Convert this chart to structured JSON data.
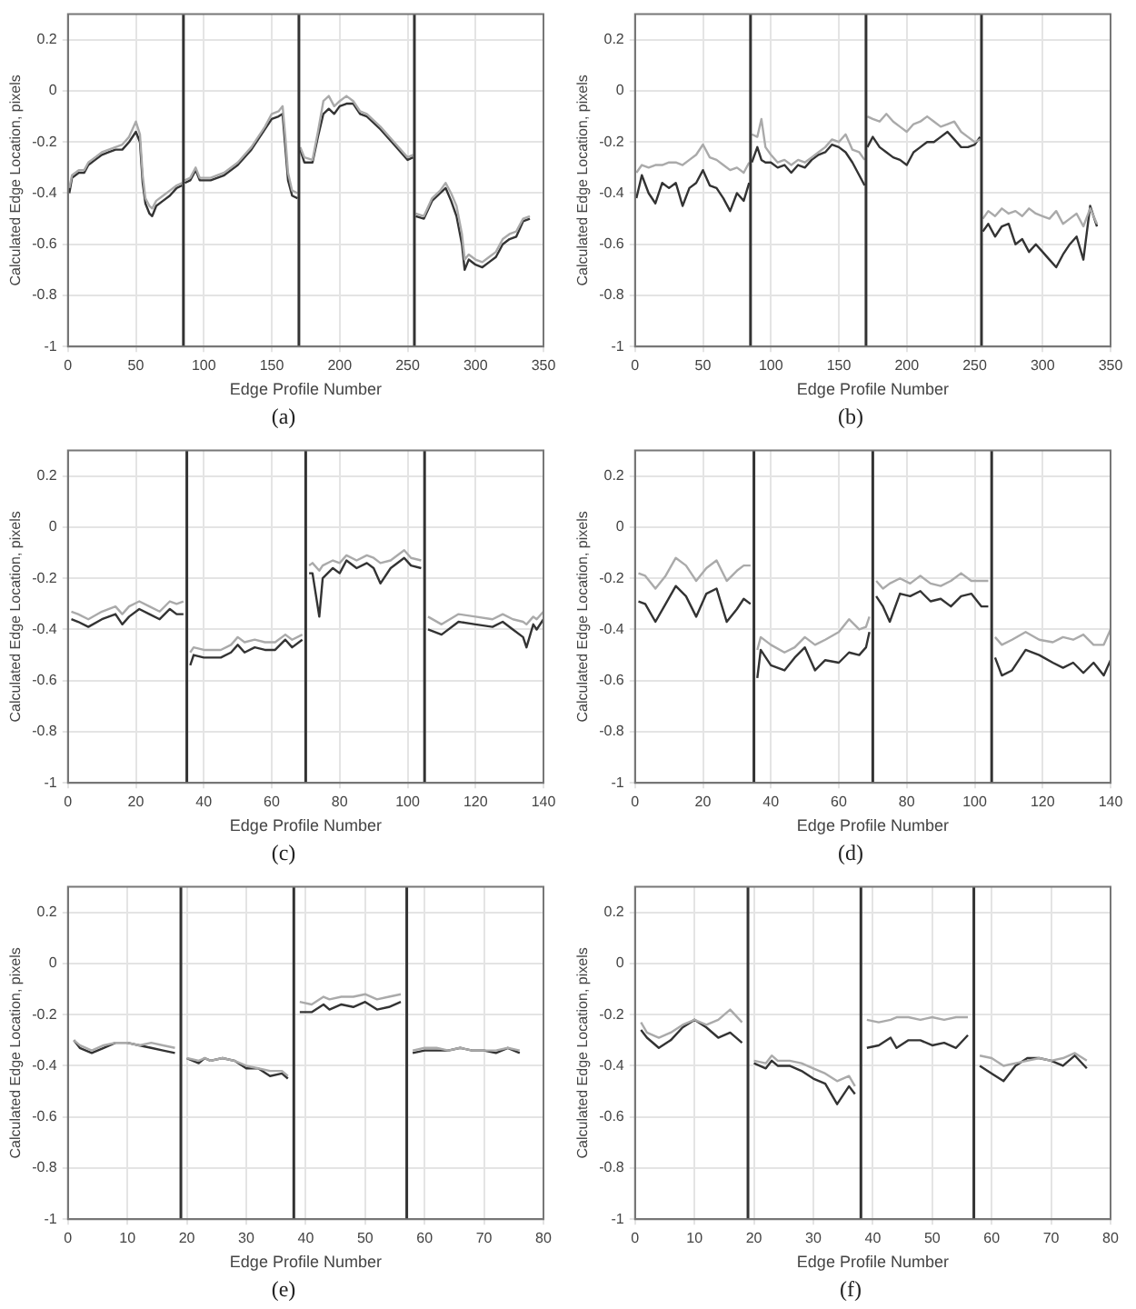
{
  "chart_data": [
    {
      "type": "line",
      "xlabel": "Edge Profile Number",
      "ylabel": "Calculated Edge Location, pixels",
      "annotations": [
        "(a)"
      ],
      "grid": true,
      "marker": "none",
      "line_style": "solid",
      "xlim": [
        0,
        350
      ],
      "xticks": [
        0,
        50,
        100,
        150,
        200,
        250,
        300,
        350
      ],
      "ylim": [
        -1,
        0.3
      ],
      "yticks": [
        -1,
        -0.8,
        -0.6,
        -0.4,
        -0.2,
        0,
        0.2
      ],
      "ref_lines": [
        {
          "axis": "x",
          "value": 85,
          "color": "#333333"
        },
        {
          "axis": "x",
          "value": 170,
          "color": "#333333"
        },
        {
          "axis": "x",
          "value": 255,
          "color": "#333333"
        }
      ],
      "x": [
        1,
        3,
        8,
        12,
        15,
        20,
        25,
        30,
        35,
        40,
        45,
        50,
        53,
        55,
        57,
        60,
        62,
        65,
        70,
        75,
        80,
        84,
        85,
        86,
        90,
        94,
        97,
        105,
        115,
        125,
        135,
        145,
        150,
        155,
        158,
        160,
        162,
        165,
        169,
        170,
        171,
        174,
        180,
        184,
        188,
        192,
        196,
        200,
        205,
        210,
        215,
        220,
        230,
        240,
        250,
        254,
        255,
        256,
        262,
        268,
        274,
        278,
        282,
        286,
        290,
        292,
        295,
        300,
        305,
        310,
        315,
        320,
        325,
        330,
        335,
        340
      ],
      "series": [
        {
          "color": "#aaaaaa",
          "values": [
            -0.38,
            -0.33,
            -0.31,
            -0.31,
            -0.28,
            -0.26,
            -0.24,
            -0.23,
            -0.22,
            -0.21,
            -0.18,
            -0.12,
            -0.17,
            -0.33,
            -0.42,
            -0.45,
            -0.46,
            -0.43,
            -0.41,
            -0.39,
            -0.37,
            -0.36,
            null,
            -0.35,
            -0.34,
            -0.3,
            -0.34,
            -0.34,
            -0.32,
            -0.28,
            -0.22,
            -0.14,
            -0.09,
            -0.08,
            -0.06,
            -0.18,
            -0.32,
            -0.39,
            -0.4,
            null,
            -0.22,
            -0.26,
            -0.27,
            -0.16,
            -0.04,
            -0.02,
            -0.06,
            -0.04,
            -0.02,
            -0.04,
            -0.08,
            -0.09,
            -0.14,
            -0.2,
            -0.26,
            -0.25,
            null,
            -0.48,
            -0.49,
            -0.42,
            -0.39,
            -0.36,
            -0.4,
            -0.45,
            -0.56,
            -0.66,
            -0.64,
            -0.66,
            -0.67,
            -0.65,
            -0.63,
            -0.58,
            -0.56,
            -0.55,
            -0.5,
            -0.49
          ]
        },
        {
          "color": "#333333",
          "values": [
            -0.4,
            -0.34,
            -0.32,
            -0.32,
            -0.29,
            -0.27,
            -0.25,
            -0.24,
            -0.23,
            -0.23,
            -0.2,
            -0.16,
            -0.2,
            -0.36,
            -0.44,
            -0.48,
            -0.49,
            -0.45,
            -0.43,
            -0.41,
            -0.38,
            -0.37,
            null,
            -0.36,
            -0.35,
            -0.31,
            -0.35,
            -0.35,
            -0.33,
            -0.29,
            -0.23,
            -0.15,
            -0.11,
            -0.1,
            -0.09,
            -0.22,
            -0.35,
            -0.41,
            -0.42,
            null,
            -0.23,
            -0.28,
            -0.28,
            -0.18,
            -0.09,
            -0.07,
            -0.09,
            -0.06,
            -0.05,
            -0.05,
            -0.09,
            -0.1,
            -0.15,
            -0.21,
            -0.27,
            -0.26,
            null,
            -0.49,
            -0.5,
            -0.43,
            -0.4,
            -0.38,
            -0.43,
            -0.49,
            -0.6,
            -0.7,
            -0.66,
            -0.68,
            -0.69,
            -0.67,
            -0.65,
            -0.6,
            -0.58,
            -0.57,
            -0.51,
            -0.5
          ]
        }
      ]
    },
    {
      "type": "line",
      "xlabel": "Edge Profile Number",
      "ylabel": "Calculated Edge Location, pixels",
      "annotations": [
        "(b)"
      ],
      "grid": true,
      "marker": "none",
      "line_style": "solid",
      "xlim": [
        0,
        350
      ],
      "xticks": [
        0,
        50,
        100,
        150,
        200,
        250,
        300,
        350
      ],
      "ylim": [
        -1,
        0.3
      ],
      "yticks": [
        -1,
        -0.8,
        -0.6,
        -0.4,
        -0.2,
        0,
        0.2
      ],
      "ref_lines": [
        {
          "axis": "x",
          "value": 85,
          "color": "#333333"
        },
        {
          "axis": "x",
          "value": 170,
          "color": "#333333"
        },
        {
          "axis": "x",
          "value": 255,
          "color": "#333333"
        }
      ],
      "x": [
        1,
        5,
        10,
        15,
        20,
        25,
        30,
        35,
        40,
        45,
        50,
        55,
        60,
        65,
        70,
        75,
        80,
        84,
        85,
        86,
        90,
        93,
        96,
        100,
        105,
        110,
        115,
        120,
        125,
        130,
        135,
        140,
        145,
        150,
        155,
        160,
        165,
        169,
        170,
        171,
        175,
        180,
        185,
        190,
        195,
        200,
        205,
        210,
        215,
        220,
        225,
        230,
        235,
        240,
        245,
        250,
        254,
        255,
        256,
        260,
        265,
        270,
        275,
        280,
        285,
        290,
        295,
        300,
        305,
        310,
        315,
        320,
        325,
        330,
        335,
        340
      ],
      "series": [
        {
          "color": "#aaaaaa",
          "values": [
            -0.32,
            -0.29,
            -0.3,
            -0.29,
            -0.29,
            -0.28,
            -0.28,
            -0.29,
            -0.27,
            -0.25,
            -0.21,
            -0.26,
            -0.27,
            -0.29,
            -0.31,
            -0.3,
            -0.32,
            -0.28,
            null,
            -0.17,
            -0.18,
            -0.11,
            -0.22,
            -0.25,
            -0.28,
            -0.27,
            -0.29,
            -0.27,
            -0.28,
            -0.26,
            -0.24,
            -0.22,
            -0.19,
            -0.2,
            -0.17,
            -0.23,
            -0.24,
            -0.27,
            null,
            -0.1,
            -0.11,
            -0.12,
            -0.09,
            -0.12,
            -0.14,
            -0.16,
            -0.13,
            -0.12,
            -0.1,
            -0.12,
            -0.14,
            -0.13,
            -0.12,
            -0.16,
            -0.18,
            -0.2,
            -0.19,
            null,
            -0.5,
            -0.47,
            -0.49,
            -0.46,
            -0.48,
            -0.47,
            -0.49,
            -0.46,
            -0.48,
            -0.49,
            -0.5,
            -0.47,
            -0.52,
            -0.5,
            -0.48,
            -0.53,
            -0.46,
            -0.52
          ]
        },
        {
          "color": "#333333",
          "values": [
            -0.42,
            -0.33,
            -0.4,
            -0.44,
            -0.36,
            -0.38,
            -0.36,
            -0.45,
            -0.38,
            -0.36,
            -0.31,
            -0.37,
            -0.38,
            -0.42,
            -0.47,
            -0.4,
            -0.43,
            -0.36,
            null,
            -0.28,
            -0.22,
            -0.27,
            -0.28,
            -0.28,
            -0.3,
            -0.29,
            -0.32,
            -0.29,
            -0.3,
            -0.27,
            -0.25,
            -0.24,
            -0.21,
            -0.22,
            -0.24,
            -0.28,
            -0.33,
            -0.37,
            null,
            -0.22,
            -0.18,
            -0.22,
            -0.24,
            -0.26,
            -0.27,
            -0.29,
            -0.24,
            -0.22,
            -0.2,
            -0.2,
            -0.18,
            -0.16,
            -0.19,
            -0.22,
            -0.22,
            -0.21,
            -0.18,
            null,
            -0.55,
            -0.52,
            -0.57,
            -0.53,
            -0.52,
            -0.6,
            -0.58,
            -0.63,
            -0.6,
            -0.63,
            -0.66,
            -0.69,
            -0.64,
            -0.6,
            -0.57,
            -0.66,
            -0.45,
            -0.53
          ]
        }
      ]
    },
    {
      "type": "line",
      "xlabel": "Edge Profile Number",
      "ylabel": "Calculated Edge Location, pixels",
      "annotations": [
        "(c)"
      ],
      "grid": true,
      "marker": "none",
      "line_style": "solid",
      "xlim": [
        0,
        140
      ],
      "xticks": [
        0,
        20,
        40,
        60,
        80,
        100,
        120,
        140
      ],
      "ylim": [
        -1,
        0.3
      ],
      "yticks": [
        -1,
        -0.8,
        -0.6,
        -0.4,
        -0.2,
        0,
        0.2
      ],
      "ref_lines": [
        {
          "axis": "x",
          "value": 35,
          "color": "#333333"
        },
        {
          "axis": "x",
          "value": 70,
          "color": "#333333"
        },
        {
          "axis": "x",
          "value": 105,
          "color": "#333333"
        }
      ],
      "x": [
        1,
        3,
        6,
        10,
        14,
        16,
        18,
        21,
        24,
        27,
        30,
        32,
        34,
        35,
        36,
        37,
        40,
        45,
        48,
        50,
        52,
        55,
        58,
        61,
        64,
        66,
        69,
        70,
        71,
        72,
        74,
        75,
        78,
        80,
        82,
        85,
        88,
        90,
        92,
        95,
        99,
        101,
        104,
        105,
        106,
        110,
        115,
        120,
        125,
        128,
        131,
        134,
        135,
        137,
        138,
        140
      ],
      "series": [
        {
          "color": "#aaaaaa",
          "values": [
            -0.33,
            -0.34,
            -0.36,
            -0.33,
            -0.31,
            -0.34,
            -0.31,
            -0.29,
            -0.31,
            -0.33,
            -0.29,
            -0.3,
            -0.29,
            null,
            -0.49,
            -0.47,
            -0.48,
            -0.48,
            -0.46,
            -0.43,
            -0.45,
            -0.44,
            -0.45,
            -0.45,
            -0.42,
            -0.44,
            -0.42,
            null,
            -0.15,
            -0.14,
            -0.17,
            -0.15,
            -0.13,
            -0.14,
            -0.11,
            -0.13,
            -0.11,
            -0.12,
            -0.14,
            -0.13,
            -0.09,
            -0.12,
            -0.13,
            null,
            -0.35,
            -0.38,
            -0.34,
            -0.35,
            -0.36,
            -0.34,
            -0.36,
            -0.37,
            -0.38,
            -0.35,
            -0.36,
            -0.33
          ]
        },
        {
          "color": "#333333",
          "values": [
            -0.36,
            -0.37,
            -0.39,
            -0.36,
            -0.34,
            -0.38,
            -0.35,
            -0.32,
            -0.34,
            -0.36,
            -0.32,
            -0.34,
            -0.34,
            null,
            -0.54,
            -0.5,
            -0.51,
            -0.51,
            -0.49,
            -0.46,
            -0.49,
            -0.47,
            -0.48,
            -0.48,
            -0.44,
            -0.47,
            -0.44,
            null,
            -0.18,
            -0.18,
            -0.35,
            -0.2,
            -0.16,
            -0.18,
            -0.13,
            -0.16,
            -0.14,
            -0.16,
            -0.22,
            -0.16,
            -0.12,
            -0.15,
            -0.16,
            null,
            -0.4,
            -0.42,
            -0.37,
            -0.38,
            -0.39,
            -0.37,
            -0.4,
            -0.43,
            -0.47,
            -0.38,
            -0.4,
            -0.36
          ]
        }
      ]
    },
    {
      "type": "line",
      "xlabel": "Edge Profile Number",
      "ylabel": "Calculated Edge Location, pixels",
      "annotations": [
        "(d)"
      ],
      "grid": true,
      "marker": "none",
      "line_style": "solid",
      "xlim": [
        0,
        140
      ],
      "xticks": [
        0,
        20,
        40,
        60,
        80,
        100,
        120,
        140
      ],
      "ylim": [
        -1,
        0.3
      ],
      "yticks": [
        -1,
        -0.8,
        -0.6,
        -0.4,
        -0.2,
        0,
        0.2
      ],
      "ref_lines": [
        {
          "axis": "x",
          "value": 35,
          "color": "#333333"
        },
        {
          "axis": "x",
          "value": 70,
          "color": "#333333"
        },
        {
          "axis": "x",
          "value": 105,
          "color": "#333333"
        }
      ],
      "x": [
        1,
        3,
        6,
        9,
        12,
        15,
        18,
        21,
        24,
        27,
        30,
        32,
        34,
        35,
        36,
        37,
        40,
        44,
        47,
        50,
        53,
        56,
        60,
        63,
        66,
        68,
        69,
        70,
        71,
        73,
        75,
        78,
        81,
        84,
        87,
        90,
        93,
        96,
        99,
        102,
        104,
        105,
        106,
        108,
        111,
        115,
        119,
        123,
        126,
        129,
        132,
        135,
        138,
        140
      ],
      "series": [
        {
          "color": "#aaaaaa",
          "values": [
            -0.18,
            -0.19,
            -0.24,
            -0.19,
            -0.12,
            -0.15,
            -0.21,
            -0.16,
            -0.13,
            -0.21,
            -0.17,
            -0.15,
            -0.15,
            null,
            -0.48,
            -0.43,
            -0.46,
            -0.49,
            -0.47,
            -0.43,
            -0.46,
            -0.44,
            -0.41,
            -0.36,
            -0.4,
            -0.39,
            -0.35,
            null,
            -0.21,
            -0.24,
            -0.22,
            -0.2,
            -0.22,
            -0.19,
            -0.22,
            -0.23,
            -0.21,
            -0.18,
            -0.21,
            -0.21,
            -0.21,
            null,
            -0.43,
            -0.46,
            -0.44,
            -0.41,
            -0.44,
            -0.45,
            -0.43,
            -0.44,
            -0.42,
            -0.46,
            -0.46,
            -0.4
          ]
        },
        {
          "color": "#333333",
          "values": [
            -0.29,
            -0.3,
            -0.37,
            -0.3,
            -0.23,
            -0.27,
            -0.35,
            -0.26,
            -0.24,
            -0.37,
            -0.32,
            -0.28,
            -0.3,
            null,
            -0.59,
            -0.48,
            -0.54,
            -0.56,
            -0.51,
            -0.47,
            -0.56,
            -0.52,
            -0.53,
            -0.49,
            -0.5,
            -0.47,
            -0.41,
            null,
            -0.27,
            -0.31,
            -0.37,
            -0.26,
            -0.27,
            -0.25,
            -0.29,
            -0.28,
            -0.31,
            -0.27,
            -0.26,
            -0.31,
            -0.31,
            null,
            -0.51,
            -0.58,
            -0.56,
            -0.48,
            -0.5,
            -0.53,
            -0.55,
            -0.53,
            -0.57,
            -0.53,
            -0.58,
            -0.52
          ]
        }
      ]
    },
    {
      "type": "line",
      "xlabel": "Edge Profile Number",
      "ylabel": "Calculated Edge Location, pixels",
      "annotations": [
        "(e)"
      ],
      "grid": true,
      "marker": "none",
      "line_style": "solid",
      "xlim": [
        0,
        80
      ],
      "xticks": [
        0,
        10,
        20,
        30,
        40,
        50,
        60,
        70,
        80
      ],
      "ylim": [
        -1,
        0.3
      ],
      "yticks": [
        -1,
        -0.8,
        -0.6,
        -0.4,
        -0.2,
        0,
        0.2
      ],
      "ref_lines": [
        {
          "axis": "x",
          "value": 19,
          "color": "#333333"
        },
        {
          "axis": "x",
          "value": 38,
          "color": "#333333"
        },
        {
          "axis": "x",
          "value": 57,
          "color": "#333333"
        }
      ],
      "x": [
        1,
        2,
        4,
        6,
        8,
        10,
        12,
        14,
        16,
        18,
        19,
        20,
        22,
        23,
        24,
        26,
        28,
        30,
        32,
        34,
        36,
        37,
        38,
        39,
        41,
        43,
        44,
        46,
        48,
        50,
        52,
        54,
        56,
        57,
        58,
        60,
        62,
        64,
        66,
        68,
        70,
        72,
        74,
        76
      ],
      "series": [
        {
          "color": "#aaaaaa",
          "values": [
            -0.3,
            -0.32,
            -0.34,
            -0.32,
            -0.31,
            -0.31,
            -0.32,
            -0.31,
            -0.32,
            -0.33,
            null,
            -0.37,
            -0.38,
            -0.37,
            -0.38,
            -0.37,
            -0.38,
            -0.4,
            -0.41,
            -0.42,
            -0.42,
            -0.44,
            null,
            -0.15,
            -0.16,
            -0.13,
            -0.14,
            -0.13,
            -0.13,
            -0.12,
            -0.14,
            -0.13,
            -0.12,
            null,
            -0.34,
            -0.33,
            -0.33,
            -0.34,
            -0.33,
            -0.34,
            -0.34,
            -0.34,
            -0.33,
            -0.34
          ]
        },
        {
          "color": "#333333",
          "values": [
            -0.3,
            -0.33,
            -0.35,
            -0.33,
            -0.31,
            -0.31,
            -0.32,
            -0.33,
            -0.34,
            -0.35,
            null,
            -0.37,
            -0.39,
            -0.37,
            -0.38,
            -0.37,
            -0.38,
            -0.41,
            -0.41,
            -0.44,
            -0.43,
            -0.45,
            null,
            -0.19,
            -0.19,
            -0.16,
            -0.18,
            -0.16,
            -0.17,
            -0.15,
            -0.18,
            -0.17,
            -0.15,
            null,
            -0.35,
            -0.34,
            -0.34,
            -0.34,
            -0.33,
            -0.34,
            -0.34,
            -0.35,
            -0.33,
            -0.35
          ]
        }
      ]
    },
    {
      "type": "line",
      "xlabel": "Edge Profile Number",
      "ylabel": "Calculated Edge Location, pixels",
      "annotations": [
        "(f)"
      ],
      "grid": true,
      "marker": "none",
      "line_style": "solid",
      "xlim": [
        0,
        80
      ],
      "xticks": [
        0,
        10,
        20,
        30,
        40,
        50,
        60,
        70,
        80
      ],
      "ylim": [
        -1,
        0.3
      ],
      "yticks": [
        -1,
        -0.8,
        -0.6,
        -0.4,
        -0.2,
        0,
        0.2
      ],
      "ref_lines": [
        {
          "axis": "x",
          "value": 19,
          "color": "#333333"
        },
        {
          "axis": "x",
          "value": 38,
          "color": "#333333"
        },
        {
          "axis": "x",
          "value": 57,
          "color": "#333333"
        }
      ],
      "x": [
        1,
        2,
        4,
        6,
        8,
        10,
        12,
        14,
        16,
        18,
        19,
        20,
        22,
        23,
        24,
        26,
        28,
        30,
        32,
        34,
        36,
        37,
        38,
        39,
        41,
        43,
        44,
        46,
        48,
        50,
        52,
        54,
        56,
        57,
        58,
        60,
        62,
        64,
        66,
        68,
        70,
        72,
        74,
        76
      ],
      "series": [
        {
          "color": "#aaaaaa",
          "values": [
            -0.23,
            -0.27,
            -0.29,
            -0.27,
            -0.24,
            -0.22,
            -0.24,
            -0.22,
            -0.18,
            -0.23,
            null,
            -0.38,
            -0.39,
            -0.36,
            -0.38,
            -0.38,
            -0.39,
            -0.41,
            -0.43,
            -0.46,
            -0.44,
            -0.48,
            null,
            -0.22,
            -0.23,
            -0.22,
            -0.21,
            -0.21,
            -0.22,
            -0.21,
            -0.22,
            -0.21,
            -0.21,
            null,
            -0.36,
            -0.37,
            -0.4,
            -0.39,
            -0.38,
            -0.37,
            -0.38,
            -0.37,
            -0.35,
            -0.38
          ]
        },
        {
          "color": "#333333",
          "values": [
            -0.26,
            -0.29,
            -0.33,
            -0.3,
            -0.25,
            -0.22,
            -0.25,
            -0.29,
            -0.27,
            -0.31,
            null,
            -0.39,
            -0.41,
            -0.38,
            -0.4,
            -0.4,
            -0.42,
            -0.45,
            -0.47,
            -0.55,
            -0.48,
            -0.51,
            null,
            -0.33,
            -0.32,
            -0.29,
            -0.33,
            -0.3,
            -0.3,
            -0.32,
            -0.31,
            -0.33,
            -0.28,
            null,
            -0.4,
            -0.43,
            -0.46,
            -0.4,
            -0.37,
            -0.37,
            -0.38,
            -0.4,
            -0.36,
            -0.41
          ]
        }
      ]
    }
  ]
}
